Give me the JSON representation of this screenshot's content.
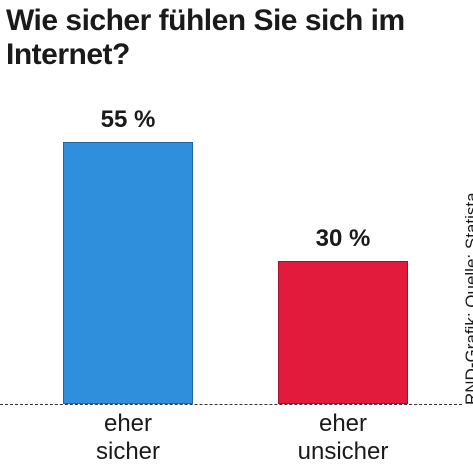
{
  "chart_data": {
    "type": "bar",
    "title": "Wie sicher fühlen Sie sich im Internet?",
    "categories": [
      "eher sicher",
      "eher unsicher"
    ],
    "values": [
      55,
      30
    ],
    "value_labels": [
      "55 %",
      "30 %"
    ],
    "colors": [
      "#2f8fdd",
      "#e21b3c"
    ],
    "source": "RND-Grafik; Quelle: Statista"
  }
}
